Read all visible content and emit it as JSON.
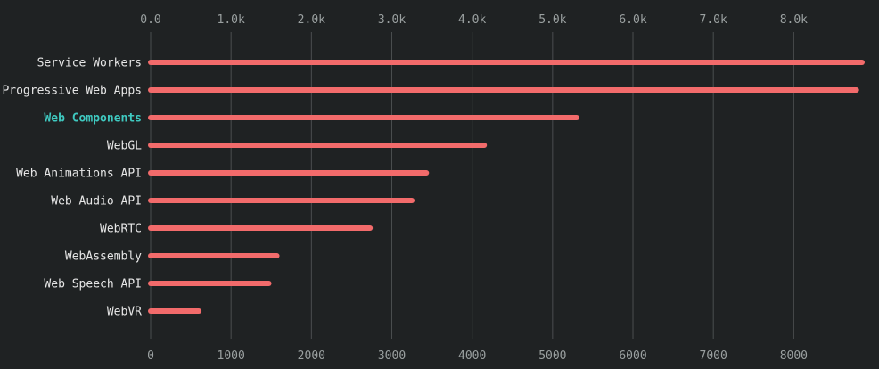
{
  "chart_data": {
    "type": "bar",
    "orientation": "horizontal",
    "categories": [
      "Service Workers",
      "Progressive Web Apps",
      "Web Components",
      "WebGL",
      "Web Animations API",
      "Web Audio API",
      "WebRTC",
      "WebAssembly",
      "Web Speech API",
      "WebVR"
    ],
    "values": [
      8850,
      8780,
      5300,
      4150,
      3430,
      3250,
      2730,
      1570,
      1470,
      600
    ],
    "highlighted_category": "Web Components",
    "top_tick_labels": [
      "0.0",
      "1.0k",
      "2.0k",
      "3.0k",
      "4.0k",
      "5.0k",
      "6.0k",
      "7.0k",
      "8.0k"
    ],
    "bottom_tick_labels": [
      "0",
      "1000",
      "2000",
      "3000",
      "4000",
      "5000",
      "6000",
      "7000",
      "8000"
    ],
    "xlim": [
      0,
      8850
    ],
    "grid": true,
    "title": "",
    "xlabel": "",
    "ylabel": "",
    "colors": {
      "bar": "#f26b6b",
      "highlight_label": "#3fc9c0",
      "grid": "#4a4e4f",
      "background": "#1f2223"
    }
  }
}
